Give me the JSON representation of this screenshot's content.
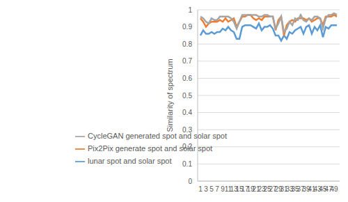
{
  "chart_data": {
    "type": "line",
    "y_label": "Similarity of spectrum",
    "categories": [
      "1",
      null,
      "3",
      null,
      "5",
      null,
      "7",
      null,
      "9",
      null,
      "11",
      null,
      "13",
      null,
      "15",
      null,
      "17",
      null,
      "19",
      null,
      "21",
      null,
      "23",
      null,
      "25",
      null,
      "27",
      null,
      "29",
      null,
      "31",
      null,
      "33",
      null,
      "35",
      null,
      "37",
      null,
      "39",
      null,
      "41",
      null,
      "43",
      null,
      "45",
      null,
      "47",
      null,
      "49",
      null
    ],
    "series": [
      {
        "name": "lunar spot and solar spot",
        "color": "#5b9bd5",
        "values": [
          0.85,
          0.88,
          0.86,
          0.86,
          0.87,
          0.86,
          0.87,
          0.87,
          0.89,
          0.88,
          0.9,
          0.88,
          0.87,
          0.83,
          0.83,
          0.9,
          0.91,
          0.91,
          0.91,
          0.9,
          0.89,
          0.92,
          0.88,
          0.9,
          0.9,
          0.91,
          0.89,
          0.85,
          0.85,
          0.82,
          0.85,
          0.83,
          0.87,
          0.86,
          0.88,
          0.89,
          0.9,
          0.86,
          0.9,
          0.91,
          0.86,
          0.9,
          0.88,
          0.91,
          0.84,
          0.9,
          0.89,
          0.91,
          0.91,
          0.91
        ]
      },
      {
        "name": "Pix2Pix generate spot and solar spot",
        "color": "#ed7d31",
        "values": [
          0.95,
          0.93,
          0.9,
          0.92,
          0.93,
          0.93,
          0.93,
          0.94,
          0.93,
          0.95,
          0.93,
          0.94,
          0.95,
          0.9,
          0.93,
          0.96,
          0.96,
          0.97,
          0.97,
          0.95,
          0.94,
          0.95,
          0.94,
          0.96,
          0.96,
          0.96,
          0.96,
          0.88,
          0.94,
          0.96,
          0.85,
          0.91,
          0.93,
          0.94,
          0.93,
          0.95,
          0.95,
          0.95,
          0.94,
          0.95,
          0.93,
          0.94,
          0.95,
          0.95,
          0.91,
          0.96,
          0.96,
          0.96,
          0.97,
          0.96
        ]
      },
      {
        "name": "CycleGAN generated spot and solar spot",
        "color": "#a5a5a5",
        "values": [
          0.96,
          0.95,
          0.93,
          0.92,
          0.95,
          0.94,
          0.94,
          0.96,
          0.96,
          0.96,
          0.96,
          0.95,
          0.93,
          0.89,
          0.93,
          0.97,
          0.97,
          0.97,
          0.97,
          0.97,
          0.97,
          0.96,
          0.96,
          0.97,
          0.97,
          0.96,
          0.96,
          0.89,
          0.92,
          0.96,
          0.87,
          0.89,
          0.93,
          0.91,
          0.95,
          0.94,
          0.97,
          0.94,
          0.93,
          0.95,
          0.94,
          0.96,
          0.96,
          0.95,
          0.89,
          0.95,
          0.97,
          0.97,
          0.98,
          0.97
        ]
      }
    ],
    "ylim": [
      0,
      1
    ],
    "yticks": [
      0,
      0.1,
      0.2,
      0.3,
      0.4,
      0.5,
      0.6,
      0.7,
      0.8,
      0.9,
      1
    ],
    "grid": true,
    "legend": "lower left"
  }
}
